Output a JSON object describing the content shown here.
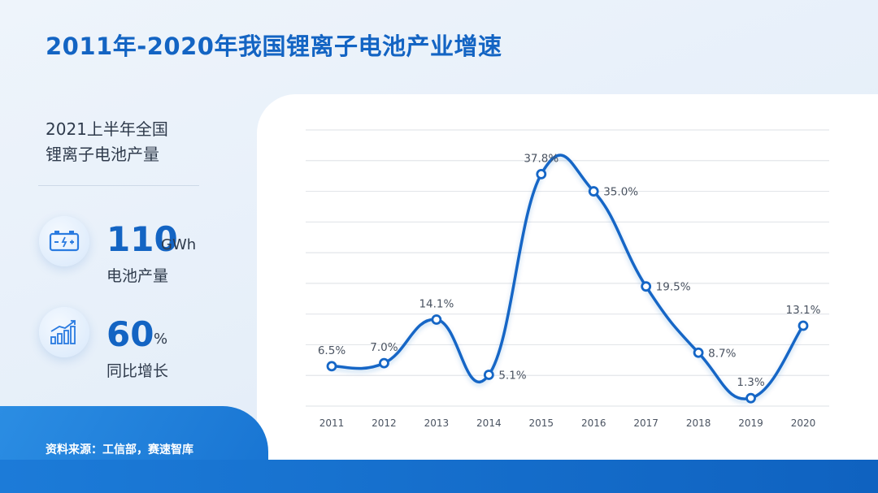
{
  "title": "2011年-2020年我国锂离子电池产业增速",
  "side": {
    "heading_line1": "2021上半年全国",
    "heading_line2": "锂离子电池产量",
    "stats": [
      {
        "value": "110",
        "unit": "GWh",
        "label": "电池产量",
        "icon": "battery-icon"
      },
      {
        "value": "60",
        "unit": "%",
        "label": "同比增长",
        "icon": "bar-growth-icon"
      }
    ]
  },
  "source": "资料来源：工信部，赛速智库",
  "colors": {
    "accent": "#1364c3",
    "line": "#1566c6"
  },
  "chart_data": {
    "type": "line",
    "categories": [
      "2011",
      "2012",
      "2013",
      "2014",
      "2015",
      "2016",
      "2017",
      "2018",
      "2019",
      "2020"
    ],
    "values": [
      6.5,
      7.0,
      14.1,
      5.1,
      37.8,
      35.0,
      19.5,
      8.7,
      1.3,
      13.1
    ],
    "labels": [
      "6.5%",
      "7.0%",
      "14.1%",
      "5.1%",
      "37.8%",
      "35.0%",
      "19.5%",
      "8.7%",
      "1.3%",
      "13.1%"
    ],
    "title": "",
    "xlabel": "",
    "ylabel": "",
    "ylim": [
      0,
      45
    ],
    "grid": true,
    "legend": "none"
  }
}
